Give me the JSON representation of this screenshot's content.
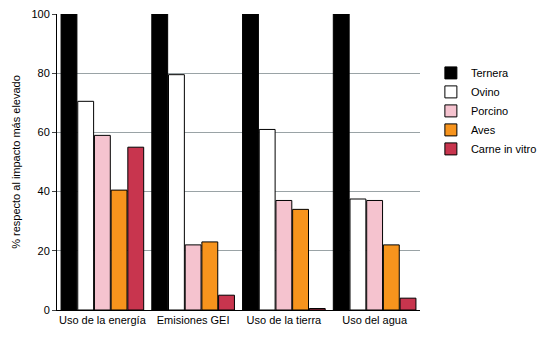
{
  "chart_data": {
    "type": "bar",
    "y_label": "% respecto al impacto más elevado",
    "categories": [
      "Uso de la energía",
      "Emisiones GEI",
      "Uso de la tierra",
      "Uso del agua"
    ],
    "series": [
      {
        "name": "Ternera",
        "color": "#000000",
        "values": [
          100,
          100,
          100,
          100
        ]
      },
      {
        "name": "Ovino",
        "color": "#ffffff",
        "values": [
          70.5,
          79.5,
          61,
          37.5
        ]
      },
      {
        "name": "Porcino",
        "color": "#f5c3cf",
        "values": [
          59,
          22,
          37,
          37
        ]
      },
      {
        "name": "Aves",
        "color": "#f7941d",
        "values": [
          40.5,
          23,
          34,
          22
        ]
      },
      {
        "name": "Carne in vitro",
        "color": "#c8354e",
        "values": [
          55,
          5,
          0.5,
          4
        ]
      }
    ],
    "ylim": [
      0,
      100
    ],
    "yticks": [
      0,
      20,
      40,
      60,
      80,
      100
    ],
    "grid": true,
    "legend": "right"
  }
}
